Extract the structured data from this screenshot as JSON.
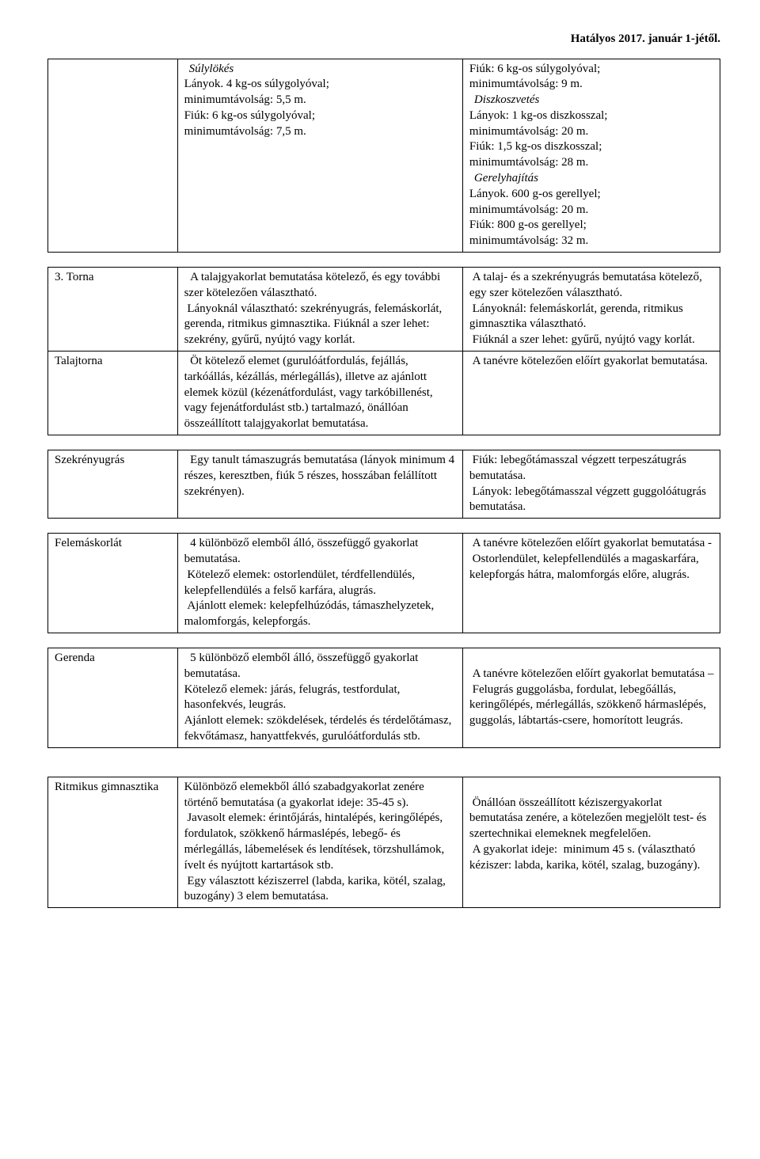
{
  "header": {
    "effective": "Hatályos 2017. január 1-jétől."
  },
  "rows": {
    "r1": {
      "col1": "",
      "col2_sulylokes": "Súlylökés",
      "col2_l1": "Lányok. 4 kg-os súlygolyóval;",
      "col2_l2": "minimumtávolság: 5,5 m.",
      "col2_l3": "Fiúk: 6 kg-os súlygolyóval;",
      "col2_l4": "minimumtávolság: 7,5 m.",
      "col3_l1": "Fiúk: 6 kg-os súlygolyóval;",
      "col3_l2": "minimumtávolság: 9 m.",
      "col3_diszkosz": "Diszkoszvetés",
      "col3_l3": "Lányok: 1 kg-os diszkosszal;",
      "col3_l4": "minimumtávolság: 20 m.",
      "col3_l5": "Fiúk: 1,5 kg-os diszkosszal;",
      "col3_l6": "minimumtávolság: 28 m.",
      "col3_gerely": "Gerelyhajítás",
      "col3_l7": "Lányok. 600 g-os gerellyel;",
      "col3_l8": "minimumtávolság: 20 m.",
      "col3_l9": "Fiúk: 800 g-os gerellyel;",
      "col3_l10": "minimumtávolság: 32 m."
    },
    "r2": {
      "col1": "3. Torna",
      "col2": "  A talajgyakorlat bemutatása kötelező, és egy további szer kötelezően választható.\n Lányoknál választható: szekrényugrás, felemáskorlát, gerenda, ritmikus gimnasztika. Fiúknál a szer lehet: szekrény, gyűrű, nyújtó vagy korlát.",
      "col3": " A talaj- és a szekrényugrás bemutatása kötelező, egy szer kötelezően választható.\n Lányoknál: felemáskorlát, gerenda, ritmikus gimnasztika választható.\n Fiúknál a szer lehet: gyűrű, nyújtó vagy korlát."
    },
    "r3": {
      "col1": "Talajtorna",
      "col2": "  Öt kötelező elemet (gurulóátfordulás, fejállás, tarkóállás, kézállás, mérlegállás), illetve az ajánlott elemek közül (kézenátfordulást, vagy tarkóbillenést, vagy fejenátfordulást stb.) tartalmazó, önállóan összeállított talajgyakorlat bemutatása.",
      "col3": " A tanévre kötelezően előírt gyakorlat bemutatása."
    },
    "r4": {
      "col1": "Szekrényugrás",
      "col2": "  Egy tanult támaszugrás bemutatása (lányok minimum 4 részes, keresztben, fiúk 5 részes, hosszában felállított szekrényen).",
      "col3": " Fiúk: lebegőtámasszal végzett terpeszátugrás bemutatása.\n Lányok: lebegőtámasszal végzett guggolóátugrás bemutatása."
    },
    "r5": {
      "col1": "Felemáskorlát",
      "col2": "  4 különböző elemből álló, összefüggő gyakorlat bemutatása.\n Kötelező elemek: ostorlendület, térdfellendülés, kelepfellendülés a felső karfára, alugrás.\n Ajánlott elemek: kelepfelhúzódás, támaszhelyzetek, malomforgás, kelepforgás.",
      "col3": " A tanévre kötelezően előírt gyakorlat bemutatása -\n Ostorlendület, kelepfellendülés a magaskarfára, kelepforgás hátra, malomforgás előre, alugrás."
    },
    "r6": {
      "col1": "Gerenda",
      "col2": "  5 különböző elemből álló, összefüggő gyakorlat bemutatása.\nKötelező elemek: járás, felugrás, testfordulat, hasonfekvés, leugrás.\nAjánlott elemek: szökdelések, térdelés és térdelőtámasz, fekvőtámasz, hanyattfekvés, gurulóátfordulás stb.",
      "col3": "\n A tanévre kötelezően előírt gyakorlat bemutatása –\n Felugrás guggolásba, fordulat, lebegőállás, keringőlépés, mérlegállás, szökkenő hármaslépés, guggolás, lábtartás-csere, homorított leugrás."
    },
    "r7": {
      "col1": "Ritmikus gimnasztika",
      "col2": "Különböző elemekből álló szabadgyakorlat zenére történő bemutatása (a gyakorlat ideje: 35-45 s).\n Javasolt elemek: érintőjárás, hintalépés, keringőlépés, fordulatok, szökkenő hármaslépés, lebegő- és mérlegállás, lábemelések és lendítések, törzshullámok, ívelt és nyújtott kartartások stb.\n Egy választott kéziszerrel (labda, karika, kötél, szalag, buzogány) 3 elem bemutatása.",
      "col3": "\n Önállóan összeállított kéziszergyakorlat bemutatása zenére, a kötelezően megjelölt test- és szertechnikai elemeknek megfelelően.\n A gyakorlat ideje:  minimum 45 s. (választható kéziszer: labda, karika, kötél, szalag, buzogány)."
    }
  }
}
